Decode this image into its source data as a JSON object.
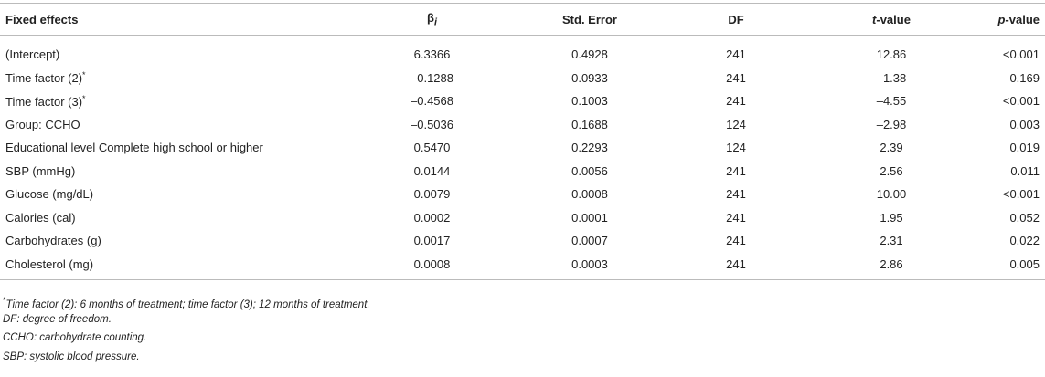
{
  "table": {
    "columns": [
      {
        "label": "Fixed effects"
      },
      {
        "label": "β",
        "sub": "i"
      },
      {
        "label": "Std. Error"
      },
      {
        "label": "DF"
      },
      {
        "italic": "t",
        "label": "-value"
      },
      {
        "italic": "p",
        "label": "-value"
      }
    ],
    "rows": [
      {
        "label": "(Intercept)",
        "cells": [
          "6.3366",
          "0.4928",
          "241",
          "12.86",
          "<0.001"
        ]
      },
      {
        "label": "Time factor (2)",
        "mark": "*",
        "cells": [
          "–0.1288",
          "0.0933",
          "241",
          "–1.38",
          "0.169"
        ]
      },
      {
        "label": "Time factor (3)",
        "mark": "*",
        "cells": [
          "–0.4568",
          "0.1003",
          "241",
          "–4.55",
          "<0.001"
        ]
      },
      {
        "label": "Group: CCHO",
        "cells": [
          "–0.5036",
          "0.1688",
          "124",
          "–2.98",
          "0.003"
        ]
      },
      {
        "label": "Educational level Complete high school or higher",
        "cells": [
          "0.5470",
          "0.2293",
          "124",
          "2.39",
          "0.019"
        ]
      },
      {
        "label": "SBP (mmHg)",
        "cells": [
          "0.0144",
          "0.0056",
          "241",
          "2.56",
          "0.011"
        ]
      },
      {
        "label": "Glucose (mg/dL)",
        "cells": [
          "0.0079",
          "0.0008",
          "241",
          "10.00",
          "<0.001"
        ]
      },
      {
        "label": "Calories (cal)",
        "cells": [
          "0.0002",
          "0.0001",
          "241",
          "1.95",
          "0.052"
        ]
      },
      {
        "label": "Carbohydrates (g)",
        "cells": [
          "0.0017",
          "0.0007",
          "241",
          "2.31",
          "0.022"
        ]
      },
      {
        "label": "Cholesterol (mg)",
        "cells": [
          "0.0008",
          "0.0003",
          "241",
          "2.86",
          "0.005"
        ]
      }
    ]
  },
  "footnotes": [
    {
      "mark": "*",
      "text": "Time factor (2): 6 months of treatment; time factor (3); 12 months of treatment."
    },
    {
      "text": "DF: degree of freedom."
    },
    {
      "text": "CCHO: carbohydrate counting."
    },
    {
      "text": "SBP: systolic blood pressure."
    }
  ]
}
